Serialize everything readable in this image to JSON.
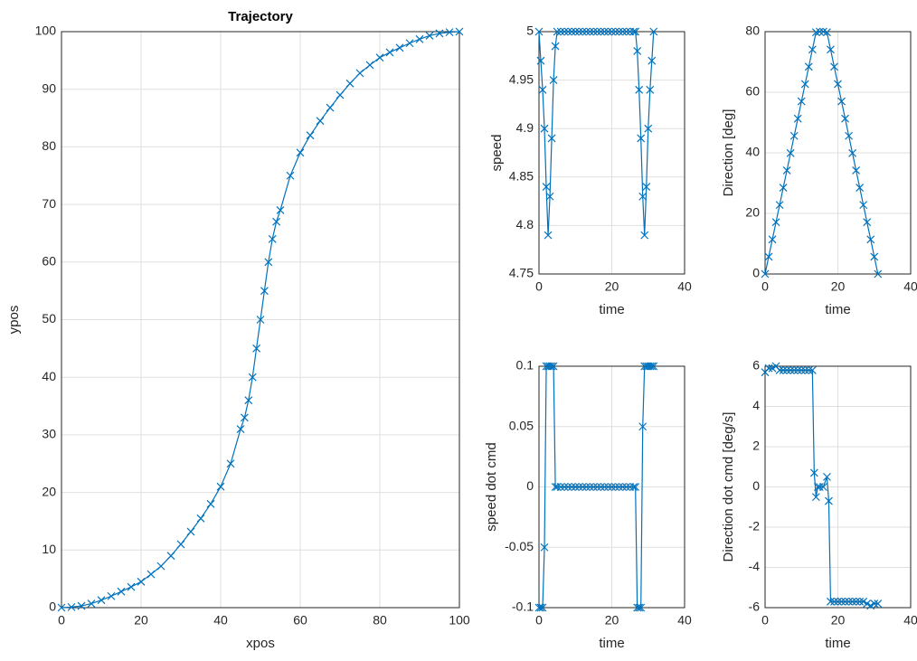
{
  "chart_data": [
    {
      "type": "line",
      "marker": "x",
      "color": "#0072bd",
      "grid": true,
      "title": "Trajectory",
      "xlabel": "xpos",
      "ylabel": "ypos",
      "xlim": [
        0,
        100
      ],
      "xticks": [
        0,
        20,
        40,
        60,
        80,
        100
      ],
      "ylim": [
        0,
        100
      ],
      "yticks": [
        0,
        10,
        20,
        30,
        40,
        50,
        60,
        70,
        80,
        90,
        100
      ],
      "x": [
        0,
        2.5,
        5,
        7.5,
        10,
        12.5,
        15,
        17.5,
        20,
        22.5,
        25,
        27.5,
        30,
        32.5,
        35,
        37.5,
        40,
        42.5,
        45,
        46,
        47,
        48,
        49,
        50,
        51,
        52,
        53,
        54,
        55,
        57.5,
        60,
        62.5,
        65,
        67.5,
        70,
        72.5,
        75,
        77.5,
        80,
        82.5,
        85,
        87.5,
        90,
        92.5,
        95,
        97.5,
        100
      ],
      "values": [
        0,
        0.1,
        0.3,
        0.7,
        1.3,
        2,
        2.8,
        3.6,
        4.5,
        5.8,
        7.2,
        9,
        11,
        13.2,
        15.5,
        18,
        21,
        25,
        31,
        33,
        36,
        40,
        45,
        50,
        55,
        60,
        64,
        67,
        69,
        75,
        79,
        82,
        84.5,
        86.8,
        89,
        91,
        92.8,
        94.2,
        95.5,
        96.4,
        97.2,
        98,
        98.7,
        99.3,
        99.7,
        99.9,
        100
      ]
    },
    {
      "type": "line",
      "marker": "x",
      "color": "#0072bd",
      "grid": true,
      "xlabel": "time",
      "ylabel": "speed",
      "xlim": [
        0,
        40
      ],
      "xticks": [
        0,
        20,
        40
      ],
      "ylim": [
        4.75,
        5
      ],
      "yticks": [
        4.75,
        4.8,
        4.85,
        4.9,
        4.95,
        5
      ],
      "x": [
        0,
        0.5,
        1,
        1.5,
        2,
        2.5,
        3,
        3.5,
        4,
        4.5,
        5,
        6,
        7,
        8,
        9,
        10,
        11,
        12,
        13,
        14,
        15,
        16,
        17,
        18,
        19,
        20,
        21,
        22,
        23,
        24,
        25,
        26,
        26.5,
        27,
        27.5,
        28,
        28.5,
        29,
        29.5,
        30,
        30.5,
        31,
        31.5
      ],
      "values": [
        5,
        4.97,
        4.94,
        4.9,
        4.84,
        4.79,
        4.83,
        4.89,
        4.95,
        4.985,
        5,
        5,
        5,
        5,
        5,
        5,
        5,
        5,
        5,
        5,
        5,
        5,
        5,
        5,
        5,
        5,
        5,
        5,
        5,
        5,
        5,
        5,
        5,
        4.98,
        4.94,
        4.89,
        4.83,
        4.79,
        4.84,
        4.9,
        4.94,
        4.97,
        5
      ]
    },
    {
      "type": "line",
      "marker": "x",
      "color": "#0072bd",
      "grid": true,
      "xlabel": "time",
      "ylabel": "Direction [deg]",
      "xlim": [
        0,
        40
      ],
      "xticks": [
        0,
        20,
        40
      ],
      "ylim": [
        0,
        80
      ],
      "yticks": [
        0,
        20,
        40,
        60,
        80
      ],
      "x": [
        0,
        1,
        2,
        3,
        4,
        5,
        6,
        7,
        8,
        9,
        10,
        11,
        12,
        13,
        14,
        15,
        16,
        17,
        18,
        19,
        20,
        21,
        22,
        23,
        24,
        25,
        26,
        27,
        28,
        29,
        30,
        31
      ],
      "values": [
        0,
        5.7,
        11.4,
        17.1,
        22.8,
        28.5,
        34.2,
        39.9,
        45.6,
        51.3,
        57,
        62.7,
        68.4,
        74.1,
        79.8,
        80,
        80,
        79.8,
        74.1,
        68.4,
        62.7,
        57,
        51.3,
        45.6,
        39.9,
        34.2,
        28.5,
        22.8,
        17.1,
        11.4,
        5.7,
        0
      ]
    },
    {
      "type": "line",
      "marker": "x",
      "color": "#0072bd",
      "grid": true,
      "xlabel": "time",
      "ylabel": "speed dot cmd",
      "xlim": [
        0,
        40
      ],
      "xticks": [
        0,
        20,
        40
      ],
      "ylim": [
        -0.1,
        0.1
      ],
      "yticks": [
        -0.1,
        -0.05,
        0,
        0.05,
        0.1
      ],
      "x": [
        0,
        0.5,
        1,
        1.5,
        2,
        2.5,
        3,
        3.5,
        4,
        4.5,
        5,
        6,
        7,
        8,
        9,
        10,
        11,
        12,
        13,
        14,
        15,
        16,
        17,
        18,
        19,
        20,
        21,
        22,
        23,
        24,
        25,
        26,
        26.5,
        27,
        27.5,
        28,
        28.5,
        29,
        29.5,
        30,
        30.5,
        31,
        31.5
      ],
      "values": [
        -0.1,
        -0.1,
        -0.1,
        -0.05,
        0.1,
        0.1,
        0.1,
        0.1,
        0.1,
        0,
        0,
        0,
        0,
        0,
        0,
        0,
        0,
        0,
        0,
        0,
        0,
        0,
        0,
        0,
        0,
        0,
        0,
        0,
        0,
        0,
        0,
        0,
        0,
        -0.1,
        -0.1,
        -0.1,
        0.05,
        0.1,
        0.1,
        0.1,
        0.1,
        0.1,
        0.1
      ]
    },
    {
      "type": "line",
      "marker": "x",
      "color": "#0072bd",
      "grid": true,
      "xlabel": "time",
      "ylabel": "Direction dot cmd [deg/s]",
      "xlim": [
        0,
        40
      ],
      "xticks": [
        0,
        20,
        40
      ],
      "ylim": [
        -6,
        6
      ],
      "yticks": [
        -6,
        -4,
        -2,
        0,
        2,
        4,
        6
      ],
      "x": [
        0,
        1,
        2,
        3,
        4,
        5,
        6,
        7,
        8,
        9,
        10,
        11,
        12,
        13,
        13.5,
        14,
        14.5,
        15,
        16,
        17,
        17.5,
        18,
        19,
        20,
        21,
        22,
        23,
        24,
        25,
        26,
        27,
        28,
        29,
        30,
        31
      ],
      "values": [
        5.7,
        5.9,
        5.9,
        6,
        5.8,
        5.8,
        5.8,
        5.8,
        5.8,
        5.8,
        5.8,
        5.8,
        5.8,
        5.8,
        0.7,
        -0.5,
        0,
        0,
        0,
        0.5,
        -0.7,
        -5.7,
        -5.7,
        -5.7,
        -5.7,
        -5.7,
        -5.7,
        -5.7,
        -5.7,
        -5.7,
        -5.7,
        -5.8,
        -5.9,
        -5.8,
        -5.8
      ]
    }
  ]
}
